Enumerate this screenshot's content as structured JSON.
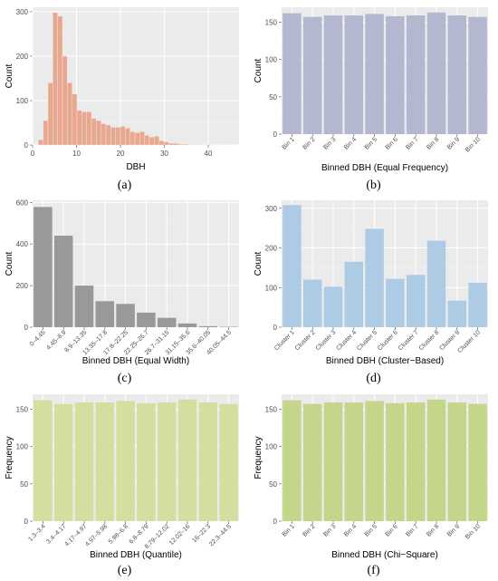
{
  "captions": [
    "(a)",
    "(b)",
    "(c)",
    "(d)",
    "(e)",
    "(f)"
  ],
  "colors": {
    "panel_bg": "#ebebeb",
    "grid": "#ffffff",
    "a": "#e8a890",
    "b": "#b3b8d0",
    "c": "#999999",
    "d": "#aecbe6",
    "e": "#d3df9f",
    "f": "#c4d68a"
  },
  "chart_data": [
    {
      "type": "histogram",
      "xlabel": "DBH",
      "ylabel": "Count",
      "xlim": [
        0,
        47
      ],
      "ylim": [
        0,
        310
      ],
      "xticks": [
        0,
        10,
        20,
        30,
        40
      ],
      "yticks": [
        0,
        100,
        200,
        300
      ],
      "bin_width": 1.1,
      "bin_start": 1.3,
      "values": [
        12,
        55,
        140,
        298,
        290,
        200,
        140,
        115,
        78,
        75,
        75,
        60,
        55,
        48,
        45,
        40,
        40,
        42,
        38,
        30,
        28,
        30,
        22,
        18,
        20,
        10,
        7,
        4,
        4,
        2,
        2,
        1,
        1,
        1,
        0,
        1,
        0,
        0,
        1
      ]
    },
    {
      "type": "bar",
      "xlabel": "Binned DBH (Equal Frequency)",
      "ylabel": "Count",
      "ylim": [
        0,
        170
      ],
      "yticks": [
        0,
        50,
        100,
        150
      ],
      "categories": [
        "Bin 1",
        "Bin 2",
        "Bin 3",
        "Bin 4",
        "Bin 5",
        "Bin 6",
        "Bin 7",
        "Bin 8",
        "Bin 9",
        "Bin 10"
      ],
      "values": [
        162,
        157,
        159,
        159,
        161,
        158,
        159,
        163,
        159,
        157
      ]
    },
    {
      "type": "bar",
      "xlabel": "Binned DBH (Equal Width)",
      "ylabel": "Count",
      "ylim": [
        0,
        610
      ],
      "yticks": [
        0,
        200,
        400,
        600
      ],
      "categories": [
        "0–4.45",
        "4.45–8.9",
        "8.9–13.35",
        "13.35–17.8",
        "17.8–22.25",
        "22.25–26.7",
        "26.7–31.15",
        "31.15–35.6",
        "35.6–40.05",
        "40.05–44.5"
      ],
      "values": [
        578,
        440,
        200,
        125,
        112,
        70,
        45,
        18,
        5,
        2
      ]
    },
    {
      "type": "bar",
      "xlabel": "Binned DBH (Cluster−Based)",
      "ylabel": "Count",
      "ylim": [
        0,
        320
      ],
      "yticks": [
        0,
        100,
        200,
        300
      ],
      "categories": [
        "Cluster 1",
        "Cluster 2",
        "Cluster 3",
        "Cluster 4",
        "Cluster 5",
        "Cluster 6",
        "Cluster 7",
        "Cluster 8",
        "Cluster 9",
        "Cluster 10"
      ],
      "values": [
        308,
        120,
        102,
        165,
        248,
        122,
        132,
        218,
        67,
        112
      ]
    },
    {
      "type": "bar",
      "xlabel": "Binned DBH (Quantile)",
      "ylabel": "Frequency",
      "ylim": [
        0,
        170
      ],
      "yticks": [
        0,
        50,
        100,
        150
      ],
      "categories": [
        "1.3–3.4",
        "3.4–4.17",
        "4.17–4.97",
        "4.97–5.98",
        "5.98–6.8",
        "6.8–8.79",
        "8.79–12.02",
        "12.02–16",
        "16–22.3",
        "22.3–44.5"
      ],
      "values": [
        162,
        157,
        159,
        159,
        161,
        158,
        159,
        163,
        159,
        157
      ]
    },
    {
      "type": "bar",
      "xlabel": "Binned DBH (Chi−Square)",
      "ylabel": "Frequency",
      "ylim": [
        0,
        170
      ],
      "yticks": [
        0,
        50,
        100,
        150
      ],
      "categories": [
        "Bin 1",
        "Bin 2",
        "Bin 3",
        "Bin 4",
        "Bin 5",
        "Bin 6",
        "Bin 7",
        "Bin 8",
        "Bin 9",
        "Bin 10"
      ],
      "values": [
        162,
        157,
        159,
        159,
        161,
        158,
        159,
        163,
        159,
        157
      ]
    }
  ]
}
